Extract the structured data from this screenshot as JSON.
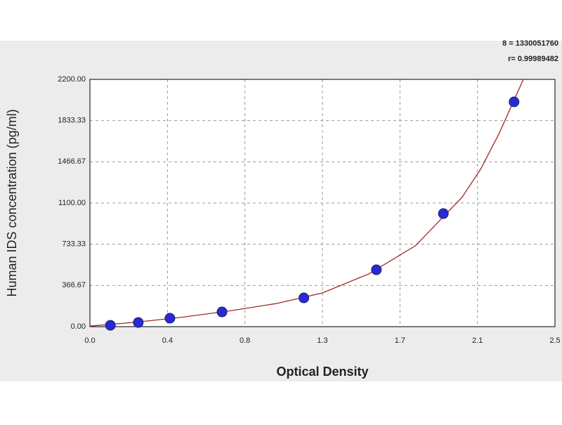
{
  "chart_data": {
    "type": "scatter",
    "annotations": [
      "8 = 1330051760",
      "r= 0.99989482"
    ],
    "xlabel": "Optical Density",
    "ylabel": "Human IDS concentration (pg/ml)",
    "xlim": [
      0,
      2.5
    ],
    "ylim": [
      0,
      2200
    ],
    "xticks": [
      {
        "value": 0,
        "label": "0.0"
      },
      {
        "value": 0.4167,
        "label": "0.4"
      },
      {
        "value": 0.8333,
        "label": "0.8"
      },
      {
        "value": 1.25,
        "label": "1.3"
      },
      {
        "value": 1.6667,
        "label": "1.7"
      },
      {
        "value": 2.0833,
        "label": "2.1"
      },
      {
        "value": 2.5,
        "label": "2.5"
      }
    ],
    "yticks": [
      {
        "value": 0,
        "label": "0.00"
      },
      {
        "value": 366.67,
        "label": "366.67"
      },
      {
        "value": 733.33,
        "label": "733.33"
      },
      {
        "value": 1100,
        "label": "1100.00"
      },
      {
        "value": 1466.67,
        "label": "1466.67"
      },
      {
        "value": 1833.33,
        "label": "1833.33"
      },
      {
        "value": 2200,
        "label": "2200.00"
      }
    ],
    "grid": true,
    "series": [
      {
        "style": "line",
        "color": "#a02828",
        "x": [
          0,
          0.25,
          0.5,
          0.75,
          1.0,
          1.25,
          1.5,
          1.75,
          2.0,
          2.1,
          2.2,
          2.33
        ],
        "values": [
          5,
          40,
          85,
          140,
          205,
          300,
          470,
          720,
          1150,
          1400,
          1720,
          2200
        ]
      },
      {
        "style": "marker",
        "color": "#2a2ad0",
        "x": [
          0.11,
          0.26,
          0.43,
          0.71,
          1.15,
          1.54,
          1.9,
          2.28
        ],
        "values": [
          12,
          37,
          75,
          131,
          256,
          506,
          1006,
          2000
        ]
      }
    ]
  }
}
